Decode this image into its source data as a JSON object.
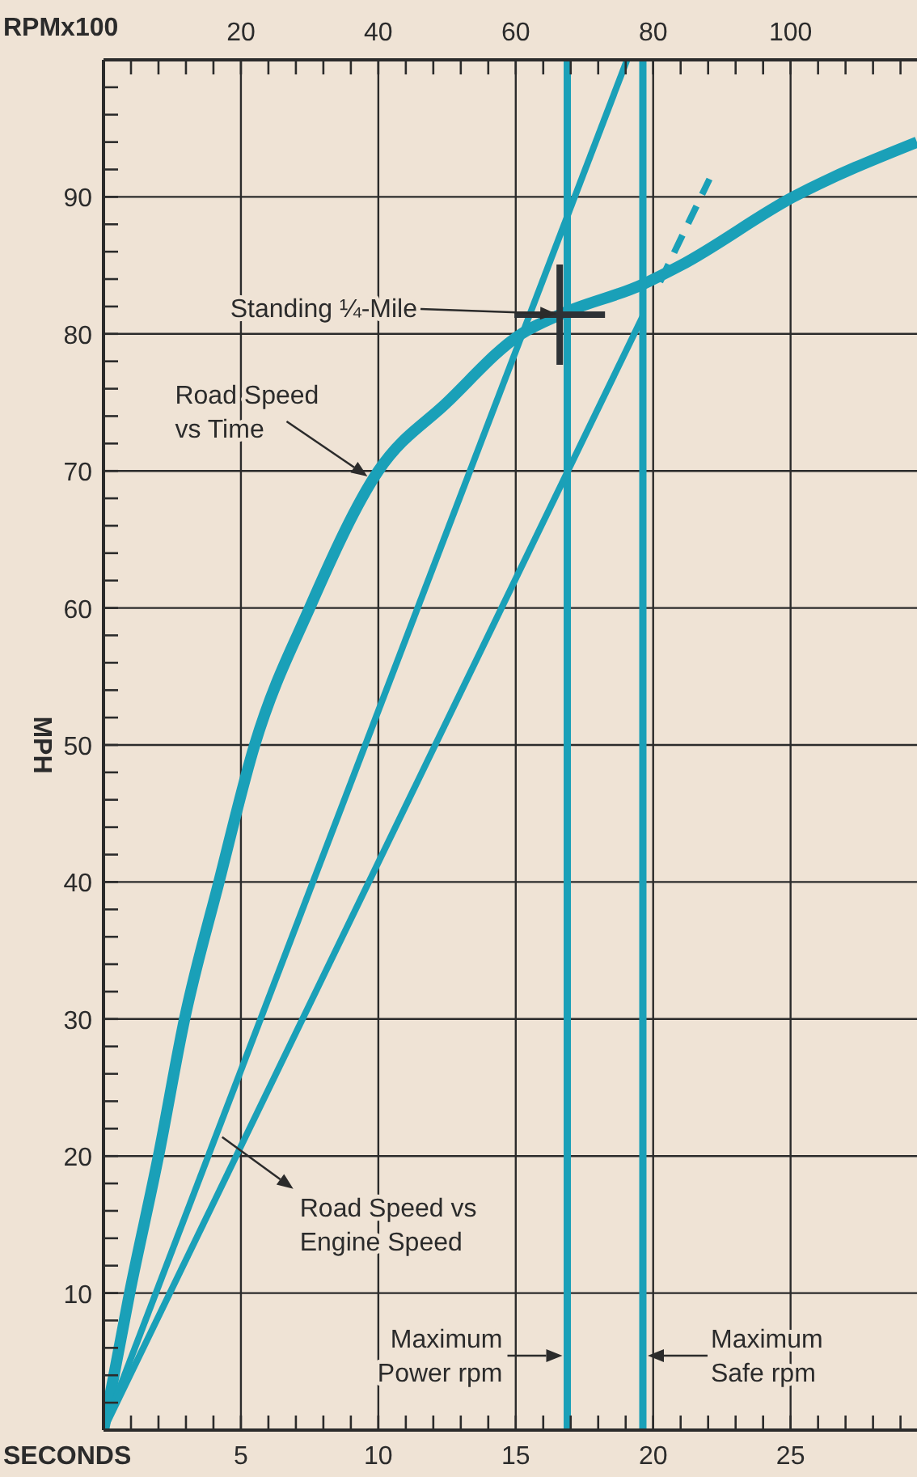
{
  "chart_data": {
    "type": "line",
    "xlabel": "SECONDS",
    "x2label": "RPMx100",
    "ylabel": "MPH",
    "xlim": [
      0,
      29.6
    ],
    "x2lim": [
      0,
      118.4
    ],
    "ylim": [
      0,
      100
    ],
    "xticks": [
      {
        "value": 1,
        "label": null
      },
      {
        "value": 2,
        "label": null
      },
      {
        "value": 3,
        "label": null
      },
      {
        "value": 4,
        "label": null
      },
      5,
      {
        "value": 6,
        "label": null
      },
      {
        "value": 7,
        "label": null
      },
      {
        "value": 8,
        "label": null
      },
      {
        "value": 9,
        "label": null
      },
      10,
      {
        "value": 11,
        "label": null
      },
      {
        "value": 12,
        "label": null
      },
      {
        "value": 13,
        "label": null
      },
      {
        "value": 14,
        "label": null
      },
      15,
      {
        "value": 16,
        "label": null
      },
      {
        "value": 17,
        "label": null
      },
      {
        "value": 18,
        "label": null
      },
      {
        "value": 19,
        "label": null
      },
      20,
      {
        "value": 21,
        "label": null
      },
      {
        "value": 22,
        "label": null
      },
      {
        "value": 23,
        "label": null
      },
      {
        "value": 24,
        "label": null
      },
      25,
      {
        "value": 26,
        "label": null
      },
      {
        "value": 27,
        "label": null
      },
      {
        "value": 28,
        "label": null
      },
      {
        "value": 29,
        "label": null
      }
    ],
    "x2ticks": [
      {
        "value": 4,
        "label": null
      },
      {
        "value": 8,
        "label": null
      },
      {
        "value": 12,
        "label": null
      },
      {
        "value": 16,
        "label": null
      },
      20,
      {
        "value": 24,
        "label": null
      },
      {
        "value": 28,
        "label": null
      },
      {
        "value": 32,
        "label": null
      },
      {
        "value": 36,
        "label": null
      },
      40,
      {
        "value": 44,
        "label": null
      },
      {
        "value": 48,
        "label": null
      },
      {
        "value": 52,
        "label": null
      },
      {
        "value": 56,
        "label": null
      },
      60,
      {
        "value": 64,
        "label": null
      },
      {
        "value": 68,
        "label": null
      },
      {
        "value": 72,
        "label": null
      },
      {
        "value": 76,
        "label": null
      },
      80,
      {
        "value": 84,
        "label": null
      },
      {
        "value": 88,
        "label": null
      },
      {
        "value": 92,
        "label": null
      },
      {
        "value": 96,
        "label": null
      },
      100,
      {
        "value": 104,
        "label": null
      },
      {
        "value": 108,
        "label": null
      },
      {
        "value": 112,
        "label": null
      },
      {
        "value": 116,
        "label": null
      }
    ],
    "yticks": [
      {
        "value": 2,
        "label": null
      },
      {
        "value": 4,
        "label": null
      },
      {
        "value": 6,
        "label": null
      },
      {
        "value": 8,
        "label": null
      },
      10,
      {
        "value": 12,
        "label": null
      },
      {
        "value": 14,
        "label": null
      },
      {
        "value": 16,
        "label": null
      },
      {
        "value": 18,
        "label": null
      },
      20,
      {
        "value": 22,
        "label": null
      },
      {
        "value": 24,
        "label": null
      },
      {
        "value": 26,
        "label": null
      },
      {
        "value": 28,
        "label": null
      },
      30,
      {
        "value": 32,
        "label": null
      },
      {
        "value": 34,
        "label": null
      },
      {
        "value": 36,
        "label": null
      },
      {
        "value": 38,
        "label": null
      },
      40,
      {
        "value": 42,
        "label": null
      },
      {
        "value": 44,
        "label": null
      },
      {
        "value": 46,
        "label": null
      },
      {
        "value": 48,
        "label": null
      },
      50,
      {
        "value": 52,
        "label": null
      },
      {
        "value": 54,
        "label": null
      },
      {
        "value": 56,
        "label": null
      },
      {
        "value": 58,
        "label": null
      },
      60,
      {
        "value": 62,
        "label": null
      },
      {
        "value": 64,
        "label": null
      },
      {
        "value": 66,
        "label": null
      },
      {
        "value": 68,
        "label": null
      },
      70,
      {
        "value": 72,
        "label": null
      },
      {
        "value": 74,
        "label": null
      },
      {
        "value": 76,
        "label": null
      },
      {
        "value": 78,
        "label": null
      },
      80,
      {
        "value": 82,
        "label": null
      },
      {
        "value": 84,
        "label": null
      },
      {
        "value": 86,
        "label": null
      },
      {
        "value": 88,
        "label": null
      },
      90,
      {
        "value": 92,
        "label": null
      },
      {
        "value": 94,
        "label": null
      },
      {
        "value": 96,
        "label": null
      },
      {
        "value": 98,
        "label": null
      }
    ],
    "grid": true,
    "series": [
      {
        "color": "#1aa0b8",
        "x": [
          0,
          0.95,
          2.0,
          2.95,
          4.2,
          5.5,
          7.5,
          10.0,
          12.5,
          15.2,
          16.6,
          19.6,
          21.0,
          25.1,
          29.6
        ],
        "values": [
          0,
          10,
          20,
          30,
          40,
          50,
          60,
          70,
          75,
          80,
          81.4,
          83.6,
          85,
          90,
          94
        ]
      },
      {
        "axis": "x2",
        "color": "#1aa0b8",
        "x": [
          0,
          76.2
        ],
        "values": [
          0,
          100
        ]
      },
      {
        "axis": "x2",
        "color": "#1aa0b8",
        "x": [
          0,
          78.5
        ],
        "values": [
          0,
          81.3
        ]
      },
      {
        "axis": "x2",
        "line_style": "dashed",
        "color": "#1aa0b8",
        "x": [
          81,
          88.2
        ],
        "values": [
          83.8,
          91.3
        ]
      },
      {
        "type": "scatter",
        "marker": "cross",
        "color": "#2e3236",
        "x": [
          16.6
        ],
        "values": [
          81.4
        ]
      }
    ],
    "ref_lines": [
      {
        "axis": "x2",
        "value": 67.5,
        "label": "Maximum\nPower rpm",
        "color": "#1aa0b8"
      },
      {
        "axis": "x2",
        "value": 78.5,
        "label": "Maximum\nSafe rpm",
        "color": "#1aa0b8"
      }
    ],
    "annotations": [
      "Standing ¼-Mile",
      {
        "text": "Road Speed\nvs Time",
        "x": 9.9,
        "y": 69.6
      },
      {
        "text": "Road Speed vs\nEngine Speed",
        "x": 4.2,
        "y": 21.5
      }
    ]
  }
}
